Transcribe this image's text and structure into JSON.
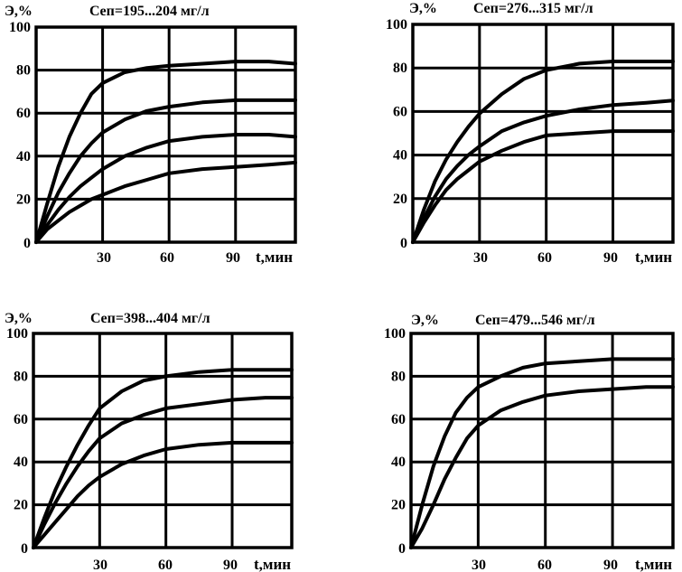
{
  "chart_data": [
    {
      "type": "line",
      "title": "Cеп=195...204 мг/л",
      "ylabel": "Э,%",
      "xlabel": "t,мин",
      "xlim": [
        0,
        117
      ],
      "ylim": [
        0,
        100
      ],
      "x_ticks": [
        "30",
        "60",
        "90"
      ],
      "y_ticks": [
        "0",
        "20",
        "40",
        "60",
        "80",
        "100"
      ],
      "grid": true,
      "x": [
        0,
        5,
        10,
        15,
        20,
        25,
        30,
        40,
        50,
        60,
        75,
        90,
        105,
        117
      ],
      "series": [
        {
          "values": [
            0,
            18,
            35,
            49,
            60,
            69,
            74,
            79,
            81,
            82,
            83,
            84,
            84,
            83
          ]
        },
        {
          "values": [
            0,
            12,
            23,
            32,
            40,
            46,
            51,
            57,
            61,
            63,
            65,
            66,
            66,
            66
          ]
        },
        {
          "values": [
            0,
            8,
            15,
            21,
            26,
            30,
            34,
            40,
            44,
            47,
            49,
            50,
            50,
            49
          ]
        },
        {
          "values": [
            0,
            6,
            10,
            14,
            17,
            20,
            22,
            26,
            29,
            32,
            34,
            35,
            36,
            37
          ]
        }
      ]
    },
    {
      "type": "line",
      "title": "Cеп=276...315 мг/л",
      "ylabel": "Э,%",
      "xlabel": "t,мин",
      "xlim": [
        0,
        117
      ],
      "ylim": [
        0,
        100
      ],
      "x_ticks": [
        "30",
        "60",
        "90"
      ],
      "y_ticks": [
        "0",
        "20",
        "40",
        "60",
        "80",
        "100"
      ],
      "grid": true,
      "x": [
        0,
        5,
        10,
        15,
        20,
        25,
        30,
        40,
        50,
        60,
        75,
        90,
        105,
        117
      ],
      "series": [
        {
          "values": [
            0,
            15,
            28,
            38,
            46,
            53,
            59,
            68,
            75,
            79,
            82,
            83,
            83,
            83
          ]
        },
        {
          "values": [
            0,
            11,
            21,
            29,
            35,
            40,
            44,
            51,
            55,
            58,
            61,
            63,
            64,
            65
          ]
        },
        {
          "values": [
            0,
            9,
            17,
            24,
            29,
            33,
            37,
            42,
            46,
            49,
            50,
            51,
            51,
            51
          ]
        }
      ]
    },
    {
      "type": "line",
      "title": "Cеп=398...404 мг/л",
      "ylabel": "Э,%",
      "xlabel": "t,мин",
      "xlim": [
        0,
        117
      ],
      "ylim": [
        0,
        100
      ],
      "x_ticks": [
        "30",
        "60",
        "90"
      ],
      "y_ticks": [
        "0",
        "20",
        "40",
        "60",
        "80",
        "100"
      ],
      "grid": true,
      "x": [
        0,
        5,
        10,
        15,
        20,
        25,
        30,
        40,
        50,
        60,
        75,
        90,
        105,
        117
      ],
      "series": [
        {
          "values": [
            0,
            14,
            27,
            38,
            48,
            57,
            65,
            73,
            78,
            80,
            82,
            83,
            83,
            83
          ]
        },
        {
          "values": [
            0,
            11,
            21,
            30,
            38,
            45,
            51,
            58,
            62,
            65,
            67,
            69,
            70,
            70
          ]
        },
        {
          "values": [
            0,
            6,
            12,
            18,
            24,
            29,
            33,
            39,
            43,
            46,
            48,
            49,
            49,
            49
          ]
        }
      ]
    },
    {
      "type": "line",
      "title": "Cеп=479...546 мг/л",
      "ylabel": "Э,%",
      "xlabel": "t,мин",
      "xlim": [
        0,
        117
      ],
      "ylim": [
        0,
        100
      ],
      "x_ticks": [
        "30",
        "60",
        "90"
      ],
      "y_ticks": [
        "0",
        "20",
        "40",
        "60",
        "80",
        "100"
      ],
      "grid": true,
      "x": [
        0,
        5,
        10,
        15,
        20,
        25,
        30,
        40,
        50,
        60,
        75,
        90,
        105,
        117
      ],
      "series": [
        {
          "values": [
            0,
            20,
            38,
            52,
            63,
            70,
            75,
            80,
            84,
            86,
            87,
            88,
            88,
            88
          ]
        },
        {
          "values": [
            0,
            9,
            20,
            32,
            42,
            51,
            57,
            64,
            68,
            71,
            73,
            74,
            75,
            75
          ]
        }
      ]
    }
  ]
}
